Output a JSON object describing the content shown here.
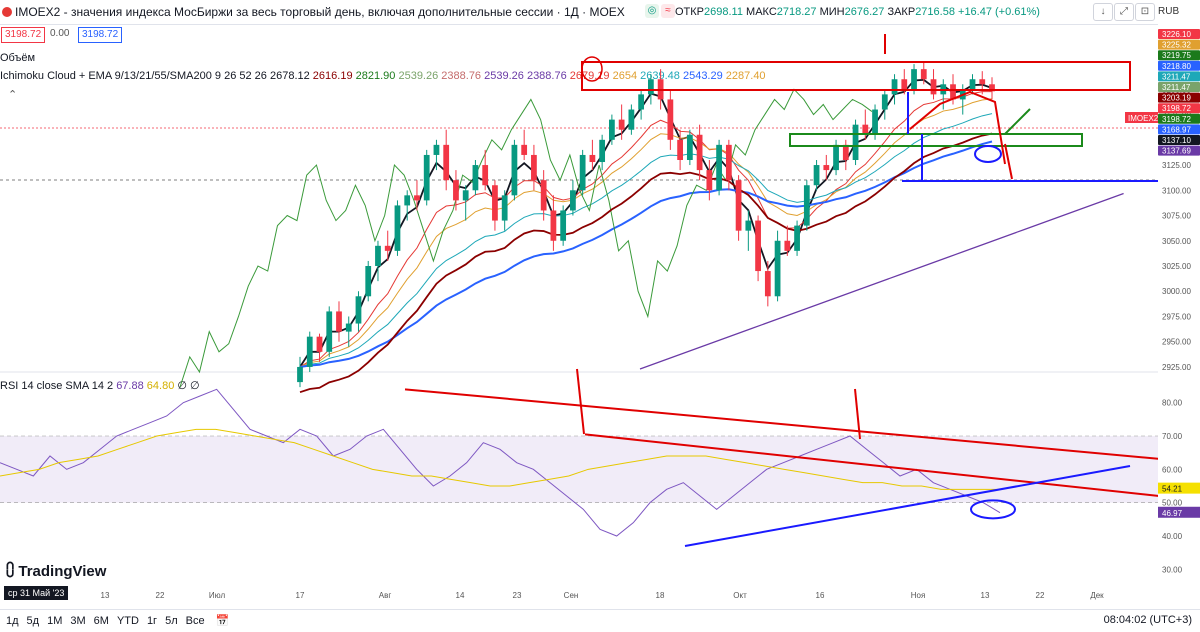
{
  "header": {
    "symbol_text": "IMOEX2 - значения индекса МосБиржи за весь торговый день, включая дополнительные сессии · 1Д · MOEX",
    "ohlc": {
      "open_label": "ОТКР",
      "open": "2698.11",
      "high_label": "МАКС",
      "high": "2718.27",
      "low_label": "МИН",
      "low": "2676.27",
      "close_label": "ЗАКР",
      "close": "2716.58",
      "change": "+16.47 (+0.61%)"
    },
    "currency": "RUB",
    "price_box_sell": "3198.72",
    "price_box_mid": "0.00",
    "price_box_buy": "3198.72"
  },
  "legend": {
    "volume": "Объём",
    "ichimoku_name": "Ichimoku Cloud + EMA 9/13/21/55/SMA200 9 26 52 26",
    "ichimoku_values": [
      {
        "v": "2678.12",
        "color": "#131722"
      },
      {
        "v": "2616.19",
        "color": "#8b0000"
      },
      {
        "v": "2821.90",
        "color": "#1b7a1b"
      },
      {
        "v": "2539.26",
        "color": "#7aa36a"
      },
      {
        "v": "2388.76",
        "color": "#c46b6b"
      },
      {
        "v": "2539.26",
        "color": "#6a3aa6"
      },
      {
        "v": "2388.76",
        "color": "#6a3aa6"
      },
      {
        "v": "2679.19",
        "color": "#e53935"
      },
      {
        "v": "2654",
        "color": "#e0a030"
      },
      {
        "v": "2639.48",
        "color": "#1ea8b8"
      },
      {
        "v": "2543.29",
        "color": "#2962ff"
      },
      {
        "v": "2287.40",
        "color": "#e0a030"
      }
    ],
    "rsi_name": "RSI 14 close SMA 14 2",
    "rsi_value": "67.88",
    "rsi_sma_value": "64.80",
    "rsi_zero1": "∅",
    "rsi_zero2": "∅"
  },
  "price_axis": {
    "ticks": [
      "3225.00",
      "3200.00",
      "3175.00",
      "3150.00",
      "3125.00",
      "3100.00",
      "3075.00",
      "3050.00",
      "3025.00",
      "3000.00",
      "2975.00",
      "2950.00",
      "2925.00"
    ],
    "tags": [
      {
        "text": "3226.10",
        "bg": "#f23645",
        "fg": "#ffffff"
      },
      {
        "text": "3225.32",
        "bg": "#e0a030",
        "fg": "#ffffff"
      },
      {
        "text": "3219.75",
        "bg": "#1b7a1b",
        "fg": "#ffffff"
      },
      {
        "text": "3218.80",
        "bg": "#2962ff",
        "fg": "#ffffff"
      },
      {
        "text": "3211.47",
        "bg": "#1ea8b8",
        "fg": "#ffffff"
      },
      {
        "text": "3211.47",
        "bg": "#7aa36a",
        "fg": "#ffffff"
      },
      {
        "text": "3203.19",
        "bg": "#8b0000",
        "fg": "#ffffff"
      },
      {
        "text": "3198.72",
        "bg": "#f23645",
        "fg": "#ffffff"
      },
      {
        "text": "3198.72",
        "bg": "#1b7a1b",
        "fg": "#ffffff"
      },
      {
        "text": "3168.97",
        "bg": "#2962ff",
        "fg": "#ffffff"
      },
      {
        "text": "3137.10",
        "bg": "#131722",
        "fg": "#ffffff"
      },
      {
        "text": "3137.69",
        "bg": "#6a3aa6",
        "fg": "#ffffff"
      }
    ],
    "last_label": "IMOEX2"
  },
  "rsi_axis": {
    "ticks": [
      "80.00",
      "70.00",
      "60.00",
      "50.00",
      "40.00",
      "30.00"
    ],
    "tags": [
      {
        "text": "54.21",
        "bg": "#f5e000",
        "fg": "#131722"
      },
      {
        "text": "46.97",
        "bg": "#6a3aa6",
        "fg": "#ffffff"
      }
    ]
  },
  "time_axis": {
    "labels": [
      "13",
      "22",
      "Июл",
      "17",
      "Авг",
      "14",
      "23",
      "Сен",
      "18",
      "Окт",
      "16",
      "Ноя",
      "13",
      "22",
      "Дек"
    ],
    "date_badge": "ср 31 Май '23"
  },
  "logo": "TradingView",
  "bottom": {
    "ranges": [
      "1д",
      "5д",
      "1М",
      "3М",
      "6М",
      "YTD",
      "1г",
      "5л",
      "Все"
    ],
    "clock": "08:04:02 (UTC+3)"
  },
  "chart_data": {
    "type": "candlestick",
    "title": "IMOEX2 · 1Д · MOEX",
    "ylim": [
      2920,
      3235
    ],
    "rsi_ylim": [
      28,
      88
    ],
    "candles": [
      [
        2910,
        2935,
        2905,
        2925
      ],
      [
        2925,
        2960,
        2920,
        2955
      ],
      [
        2955,
        2958,
        2930,
        2940
      ],
      [
        2940,
        2985,
        2935,
        2980
      ],
      [
        2980,
        2990,
        2950,
        2960
      ],
      [
        2960,
        2975,
        2945,
        2968
      ],
      [
        2968,
        3000,
        2960,
        2995
      ],
      [
        2995,
        3030,
        2990,
        3025
      ],
      [
        3025,
        3050,
        3010,
        3045
      ],
      [
        3045,
        3060,
        3030,
        3040
      ],
      [
        3040,
        3090,
        3035,
        3085
      ],
      [
        3085,
        3100,
        3070,
        3095
      ],
      [
        3095,
        3110,
        3080,
        3090
      ],
      [
        3090,
        3140,
        3085,
        3135
      ],
      [
        3135,
        3150,
        3120,
        3145
      ],
      [
        3145,
        3160,
        3100,
        3110
      ],
      [
        3110,
        3120,
        3080,
        3090
      ],
      [
        3090,
        3105,
        3070,
        3100
      ],
      [
        3100,
        3130,
        3095,
        3125
      ],
      [
        3125,
        3140,
        3100,
        3105
      ],
      [
        3105,
        3110,
        3060,
        3070
      ],
      [
        3070,
        3100,
        3060,
        3095
      ],
      [
        3095,
        3150,
        3090,
        3145
      ],
      [
        3145,
        3160,
        3130,
        3135
      ],
      [
        3135,
        3145,
        3100,
        3110
      ],
      [
        3110,
        3120,
        3070,
        3080
      ],
      [
        3080,
        3095,
        3040,
        3050
      ],
      [
        3050,
        3085,
        3045,
        3080
      ],
      [
        3080,
        3110,
        3075,
        3100
      ],
      [
        3100,
        3140,
        3095,
        3135
      ],
      [
        3135,
        3150,
        3120,
        3128
      ],
      [
        3128,
        3155,
        3120,
        3150
      ],
      [
        3150,
        3175,
        3145,
        3170
      ],
      [
        3170,
        3185,
        3150,
        3160
      ],
      [
        3160,
        3185,
        3155,
        3180
      ],
      [
        3180,
        3200,
        3170,
        3195
      ],
      [
        3195,
        3215,
        3185,
        3210
      ],
      [
        3210,
        3220,
        3180,
        3190
      ],
      [
        3190,
        3200,
        3140,
        3150
      ],
      [
        3150,
        3160,
        3120,
        3130
      ],
      [
        3130,
        3160,
        3125,
        3155
      ],
      [
        3155,
        3165,
        3110,
        3120
      ],
      [
        3120,
        3130,
        3090,
        3100
      ],
      [
        3100,
        3150,
        3095,
        3145
      ],
      [
        3145,
        3150,
        3100,
        3110
      ],
      [
        3110,
        3115,
        3050,
        3060
      ],
      [
        3060,
        3080,
        3040,
        3070
      ],
      [
        3070,
        3075,
        3010,
        3020
      ],
      [
        3020,
        3030,
        2985,
        2995
      ],
      [
        2995,
        3060,
        2990,
        3050
      ],
      [
        3050,
        3065,
        3035,
        3040
      ],
      [
        3040,
        3070,
        3035,
        3065
      ],
      [
        3065,
        3110,
        3060,
        3105
      ],
      [
        3105,
        3130,
        3100,
        3125
      ],
      [
        3125,
        3135,
        3110,
        3120
      ],
      [
        3120,
        3150,
        3115,
        3145
      ],
      [
        3145,
        3150,
        3120,
        3130
      ],
      [
        3130,
        3170,
        3125,
        3165
      ],
      [
        3165,
        3180,
        3150,
        3155
      ],
      [
        3155,
        3185,
        3150,
        3180
      ],
      [
        3180,
        3200,
        3170,
        3195
      ],
      [
        3195,
        3215,
        3185,
        3210
      ],
      [
        3210,
        3220,
        3195,
        3200
      ],
      [
        3200,
        3225,
        3195,
        3220
      ],
      [
        3220,
        3228,
        3205,
        3210
      ],
      [
        3210,
        3220,
        3190,
        3195
      ],
      [
        3195,
        3210,
        3180,
        3205
      ],
      [
        3205,
        3215,
        3185,
        3190
      ],
      [
        3190,
        3205,
        3175,
        3200
      ],
      [
        3200,
        3215,
        3195,
        3210
      ],
      [
        3210,
        3218,
        3195,
        3205
      ],
      [
        3205,
        3212,
        3190,
        3198
      ]
    ],
    "rsi": [
      62,
      60,
      58,
      64,
      60,
      62,
      66,
      70,
      72,
      74,
      76,
      80,
      82,
      84,
      78,
      72,
      70,
      68,
      72,
      70,
      64,
      66,
      70,
      72,
      66,
      60,
      55,
      58,
      62,
      68,
      66,
      62,
      60,
      56,
      52,
      48,
      42,
      40,
      44,
      50,
      54,
      56,
      52,
      48,
      52,
      56,
      60,
      62,
      64,
      66,
      68,
      70,
      66,
      62,
      58,
      60,
      56,
      54,
      52,
      50,
      47
    ],
    "rsi_sma": [
      58,
      59,
      60,
      62,
      63,
      64,
      66,
      68,
      70,
      71,
      72,
      72,
      71,
      70,
      69,
      68,
      66,
      64,
      62,
      60,
      59,
      58,
      58,
      57,
      56,
      55,
      55,
      56,
      57,
      58,
      60,
      61,
      62,
      63,
      64,
      64,
      64,
      63,
      62,
      61,
      60,
      59,
      58,
      57,
      56,
      56,
      55,
      55,
      54,
      54,
      54,
      54
    ]
  }
}
